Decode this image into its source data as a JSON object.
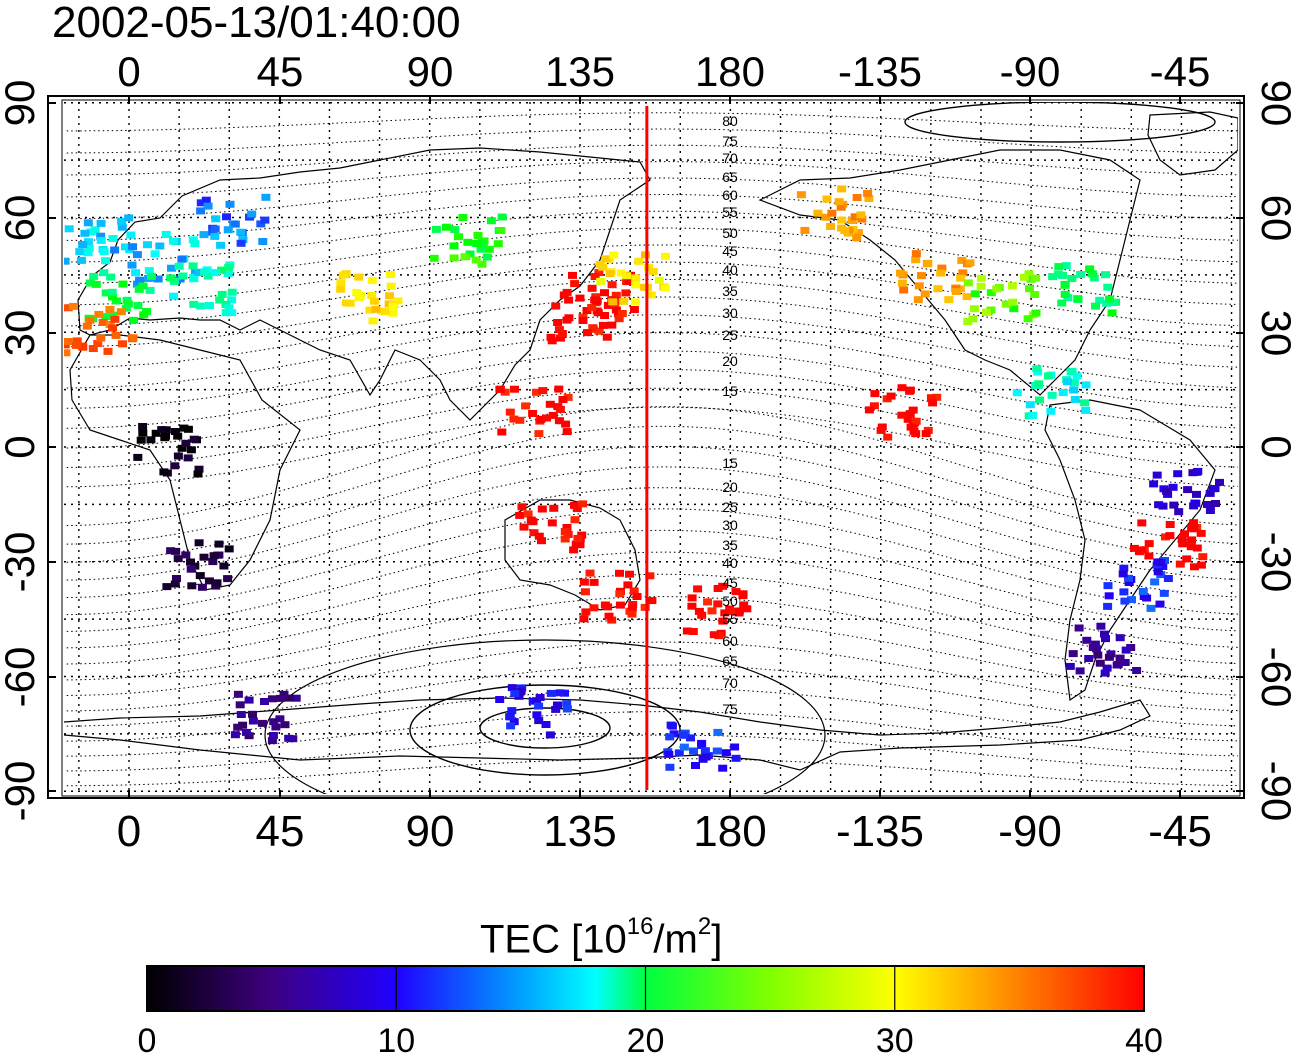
{
  "title": "2002-05-13/01:40:00",
  "map": {
    "top_lon_labels": [
      "0",
      "45",
      "90",
      "135",
      "180",
      "-135",
      "-90",
      "-45"
    ],
    "bottom_lon_labels": [
      "0",
      "45",
      "90",
      "135",
      "180",
      "-135",
      "-90",
      "-45"
    ],
    "left_lat_labels": [
      "90",
      "60",
      "30",
      "0",
      "-30",
      "-60",
      "-90"
    ],
    "right_lat_labels": [
      "90",
      "60",
      "30",
      "0",
      "-30",
      "-60",
      "-90"
    ],
    "contour_labels_north": [
      "80",
      "75",
      "70",
      "65",
      "60",
      "55",
      "50",
      "45",
      "40",
      "35",
      "30",
      "25",
      "20",
      "15"
    ],
    "contour_labels_south": [
      "15",
      "20",
      "25",
      "30",
      "35",
      "40",
      "45",
      "50",
      "55",
      "60",
      "65",
      "70",
      "75"
    ],
    "terminator_lon": 155
  },
  "colorbar": {
    "title_prefix": "TEC  [10",
    "title_exp1": "16",
    "title_mid": "/m",
    "title_exp2": "2",
    "title_suffix": "]",
    "ticks": [
      "0",
      "10",
      "20",
      "30",
      "40"
    ],
    "min": 0,
    "max": 40
  },
  "colors": {
    "terminator": "#ff0000",
    "scale": [
      "#000000",
      "#3d0080",
      "#2000ff",
      "#00ffff",
      "#00ff00",
      "#ffff00",
      "#ff8000",
      "#ff0000"
    ]
  },
  "observations": [
    {
      "lon": -10,
      "lat": 55,
      "tec": 16
    },
    {
      "lon": 10,
      "lat": 50,
      "tec": 16
    },
    {
      "lon": 30,
      "lat": 60,
      "tec": 14
    },
    {
      "lon": -5,
      "lat": 40,
      "tec": 21
    },
    {
      "lon": 20,
      "lat": 42,
      "tec": 19
    },
    {
      "lon": -10,
      "lat": 32,
      "tec": 36
    },
    {
      "lon": 70,
      "lat": 40,
      "tec": 30
    },
    {
      "lon": 100,
      "lat": 55,
      "tec": 23
    },
    {
      "lon": 135,
      "lat": 35,
      "tec": 40
    },
    {
      "lon": 140,
      "lat": 40,
      "tec": 40
    },
    {
      "lon": 150,
      "lat": 45,
      "tec": 30
    },
    {
      "lon": 120,
      "lat": 10,
      "tec": 40
    },
    {
      "lon": 125,
      "lat": -20,
      "tec": 40
    },
    {
      "lon": 145,
      "lat": -38,
      "tec": 40
    },
    {
      "lon": 175,
      "lat": -42,
      "tec": 40
    },
    {
      "lon": -150,
      "lat": 62,
      "tec": 33
    },
    {
      "lon": -120,
      "lat": 45,
      "tec": 33
    },
    {
      "lon": -100,
      "lat": 40,
      "tec": 25
    },
    {
      "lon": -75,
      "lat": 42,
      "tec": 21
    },
    {
      "lon": -85,
      "lat": 15,
      "tec": 18
    },
    {
      "lon": -45,
      "lat": -10,
      "tec": 9
    },
    {
      "lon": -50,
      "lat": -25,
      "tec": 40
    },
    {
      "lon": -60,
      "lat": -35,
      "tec": 12
    },
    {
      "lon": -70,
      "lat": -52,
      "tec": 7
    },
    {
      "lon": 20,
      "lat": -30,
      "tec": 3
    },
    {
      "lon": 10,
      "lat": 0,
      "tec": 1
    },
    {
      "lon": 40,
      "lat": -70,
      "tec": 6
    },
    {
      "lon": 120,
      "lat": -68,
      "tec": 11
    },
    {
      "lon": 170,
      "lat": -78,
      "tec": 12
    },
    {
      "lon": -130,
      "lat": 10,
      "tec": 40
    }
  ]
}
